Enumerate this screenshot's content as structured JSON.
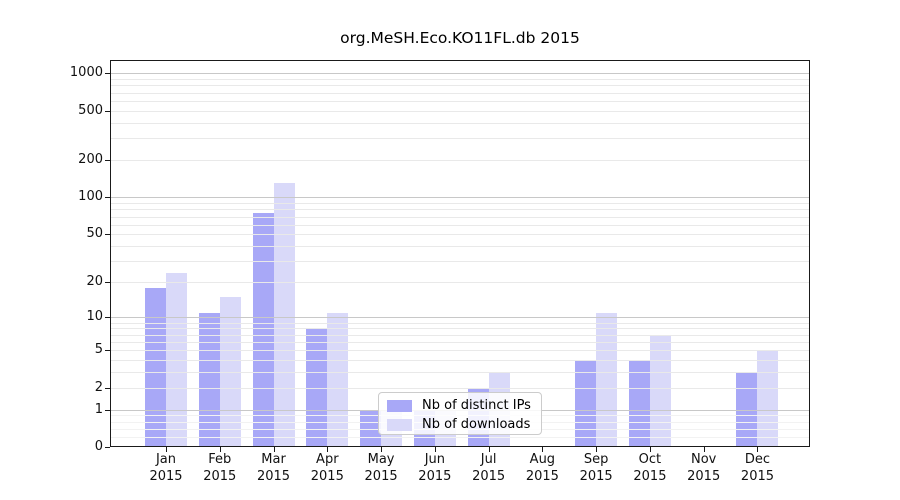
{
  "chart_data": {
    "type": "bar",
    "title": "org.MeSH.Eco.KO11FL.db 2015",
    "categories": [
      "Jan",
      "Feb",
      "Mar",
      "Apr",
      "May",
      "Jun",
      "Jul",
      "Aug",
      "Sep",
      "Oct",
      "Nov",
      "Dec"
    ],
    "x_sublabel_year": "2015",
    "series": [
      {
        "name": "Nb of distinct IPs",
        "color": "#a8a8f7",
        "values": [
          18,
          11,
          75,
          8,
          1,
          1,
          2,
          0,
          4,
          4,
          0,
          3
        ]
      },
      {
        "name": "Nb of downloads",
        "color": "#d9d9f9",
        "values": [
          24,
          15,
          130,
          11,
          1,
          1,
          3,
          0,
          11,
          7,
          0,
          5
        ]
      }
    ],
    "yticks": [
      0,
      1,
      2,
      5,
      10,
      20,
      50,
      100,
      200,
      500,
      1000
    ],
    "yscale": "log10(value+1)",
    "ylim": [
      0,
      1236
    ],
    "grid": "horizontal",
    "legend_position": "inside-bottom-center"
  }
}
